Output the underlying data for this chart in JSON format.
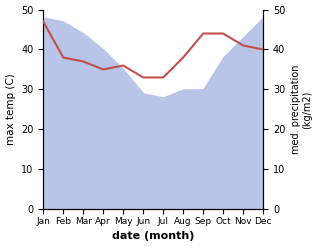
{
  "months": [
    "Jan",
    "Feb",
    "Mar",
    "Apr",
    "May",
    "Jun",
    "Jul",
    "Aug",
    "Sep",
    "Oct",
    "Nov",
    "Dec"
  ],
  "month_indices": [
    0,
    1,
    2,
    3,
    4,
    5,
    6,
    7,
    8,
    9,
    10,
    11
  ],
  "precipitation": [
    48,
    47,
    44,
    40,
    35,
    29,
    28,
    30,
    30,
    38,
    43,
    48
  ],
  "temperature": [
    47,
    38,
    37,
    35,
    36,
    33,
    33,
    38,
    44,
    44,
    41,
    40
  ],
  "temp_color": "#c0504d",
  "precip_fill_color": "#b8c4e8",
  "ylim_left": [
    0,
    50
  ],
  "ylim_right": [
    0,
    50
  ],
  "yticks_left": [
    0,
    10,
    20,
    30,
    40,
    50
  ],
  "yticks_right": [
    0,
    10,
    20,
    30,
    40,
    50
  ],
  "xlabel": "date (month)",
  "ylabel_left": "max temp (C)",
  "ylabel_right": "med. precipitation\n(kg/m2)",
  "figsize": [
    3.18,
    2.47
  ],
  "dpi": 100
}
